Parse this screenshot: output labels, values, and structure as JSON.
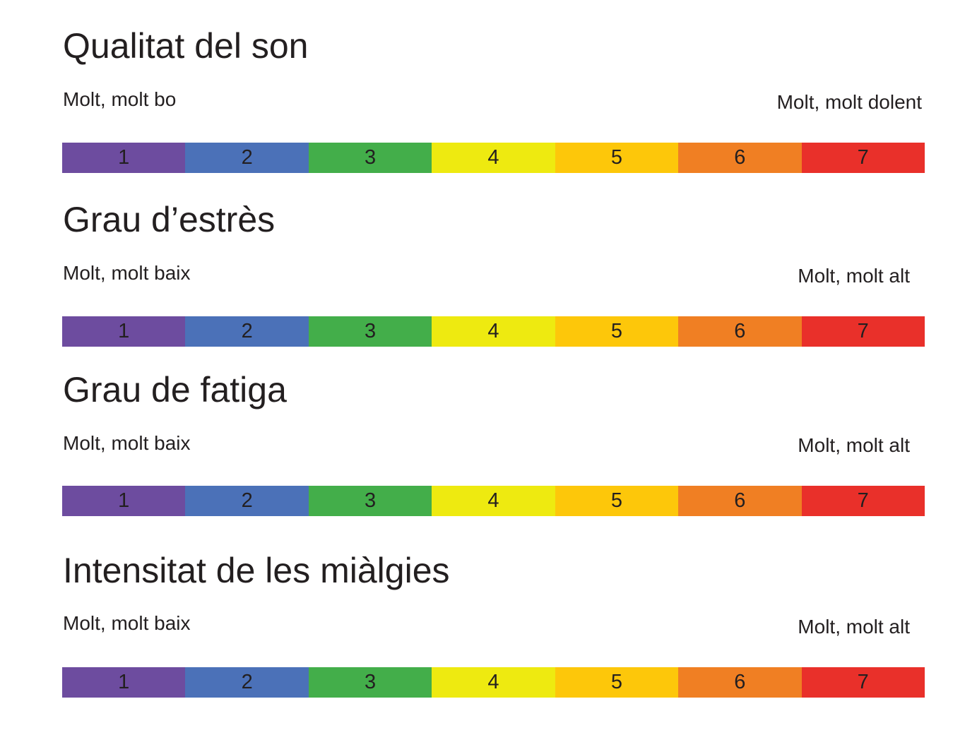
{
  "scale_colors": [
    "#6d4c9f",
    "#4b71b8",
    "#43ae4a",
    "#eeea10",
    "#fdc70a",
    "#f07f23",
    "#e9302a"
  ],
  "sections": [
    {
      "title": "Qualitat del son",
      "low_label": "Molt, molt bo",
      "high_label": "Molt, molt dolent",
      "values": [
        "1",
        "2",
        "3",
        "4",
        "5",
        "6",
        "7"
      ]
    },
    {
      "title": "Grau d’estrès",
      "low_label": "Molt, molt baix",
      "high_label": "Molt, molt alt",
      "values": [
        "1",
        "2",
        "3",
        "4",
        "5",
        "6",
        "7"
      ]
    },
    {
      "title": "Grau de fatiga",
      "low_label": "Molt, molt baix",
      "high_label": "Molt, molt alt",
      "values": [
        "1",
        "2",
        "3",
        "4",
        "5",
        "6",
        "7"
      ]
    },
    {
      "title": "Intensitat de les miàlgies",
      "low_label": "Molt, molt baix",
      "high_label": "Molt, molt alt",
      "values": [
        "1",
        "2",
        "3",
        "4",
        "5",
        "6",
        "7"
      ]
    }
  ]
}
